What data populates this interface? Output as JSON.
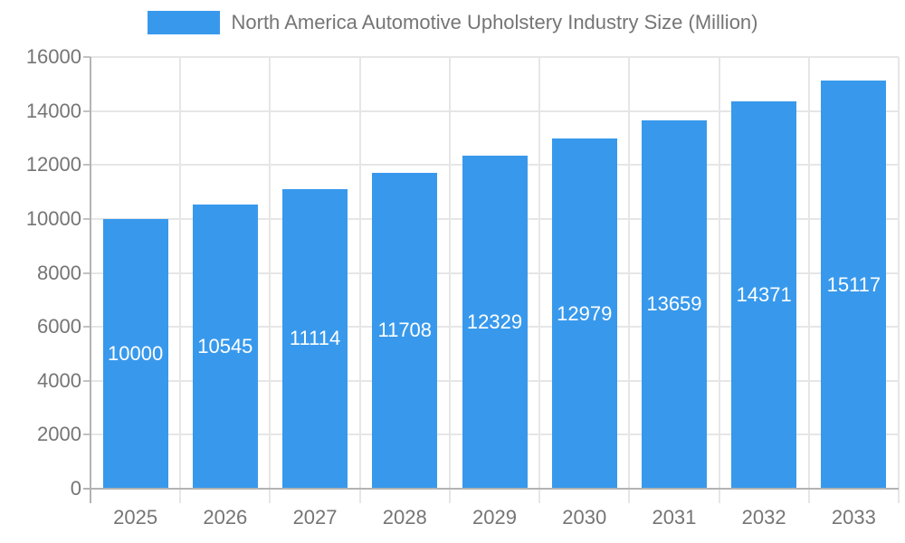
{
  "chart_data": {
    "type": "bar",
    "title": "North America Automotive Upholstery Industry Size (Million)",
    "legend": {
      "label": "North America Automotive Upholstery Industry Size (Million)",
      "position": "top"
    },
    "categories": [
      "2025",
      "2026",
      "2027",
      "2028",
      "2029",
      "2030",
      "2031",
      "2032",
      "2033"
    ],
    "values": [
      10000,
      10545,
      11114,
      11708,
      12329,
      12979,
      13659,
      14371,
      15117
    ],
    "xlabel": "",
    "ylabel": "",
    "ylim": [
      0,
      16000
    ],
    "yticks": [
      0,
      2000,
      4000,
      6000,
      8000,
      10000,
      12000,
      14000,
      16000
    ],
    "grid": true,
    "bar_labels_shown": true
  },
  "colors": {
    "bar": "#3899ec",
    "bar_label_text": "#ffffff",
    "axis_text": "#757575",
    "legend_text": "#757575",
    "axis_line": "#b3b3b3",
    "gridline": "#e6e6e6",
    "tick_mark": "#c2c2c2",
    "background": "#ffffff"
  }
}
